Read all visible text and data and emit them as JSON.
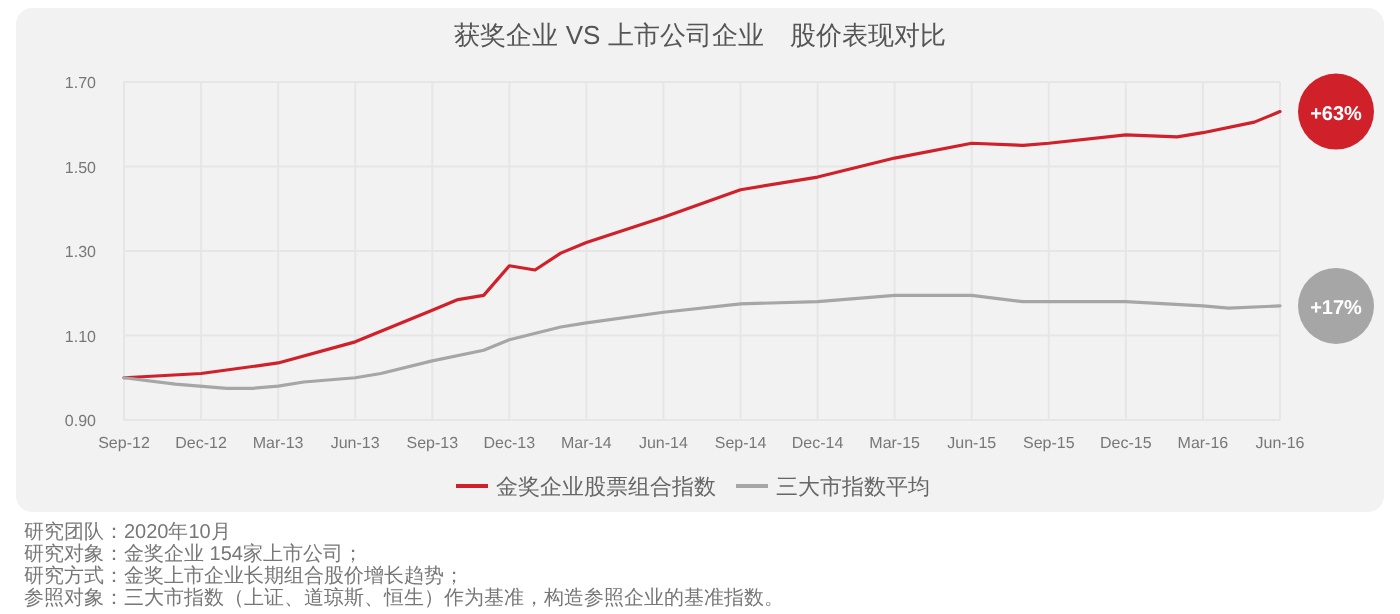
{
  "chart_data": {
    "type": "line",
    "title": "获奖企业 VS 上市公司企业　股价表现对比",
    "xlim": [
      "2012-09",
      "2016-06"
    ],
    "xticks": [
      {
        "value": "2012-09",
        "label": "Sep-12"
      },
      {
        "value": "2012-12",
        "label": "Dec-12"
      },
      {
        "value": "2013-03",
        "label": "Mar-13"
      },
      {
        "value": "2013-06",
        "label": "Jun-13"
      },
      {
        "value": "2013-09",
        "label": "Sep-13"
      },
      {
        "value": "2013-12",
        "label": "Dec-13"
      },
      {
        "value": "2014-03",
        "label": "Mar-14"
      },
      {
        "value": "2014-06",
        "label": "Jun-14"
      },
      {
        "value": "2014-09",
        "label": "Sep-14"
      },
      {
        "value": "2014-12",
        "label": "Dec-14"
      },
      {
        "value": "2015-03",
        "label": "Mar-15"
      },
      {
        "value": "2015-06",
        "label": "Jun-15"
      },
      {
        "value": "2015-09",
        "label": "Sep-15"
      },
      {
        "value": "2015-12",
        "label": "Dec-15"
      },
      {
        "value": "2016-03",
        "label": "Mar-16"
      },
      {
        "value": "2016-06",
        "label": "Jun-16"
      }
    ],
    "ylim": [
      0.9,
      1.7
    ],
    "yticks": [
      {
        "value": 0.9,
        "label": "0.90"
      },
      {
        "value": 1.1,
        "label": "1.10"
      },
      {
        "value": 1.3,
        "label": "1.30"
      },
      {
        "value": 1.5,
        "label": "1.50"
      },
      {
        "value": 1.7,
        "label": "1.70"
      }
    ],
    "grid": true,
    "legend": "bottom",
    "series": [
      {
        "name": "金奖企业股票组合指数",
        "color": "#d0202a",
        "x": [
          "2012-09",
          "2012-12",
          "2013-03",
          "2013-06",
          "2013-09",
          "2013-10",
          "2013-11",
          "2013-12",
          "2014-01",
          "2014-02",
          "2014-03",
          "2014-06",
          "2014-09",
          "2014-12",
          "2015-03",
          "2015-06",
          "2015-08",
          "2015-09",
          "2015-12",
          "2016-02",
          "2016-03",
          "2016-05",
          "2016-06"
        ],
        "values": [
          1.0,
          1.01,
          1.035,
          1.085,
          1.16,
          1.185,
          1.195,
          1.265,
          1.255,
          1.295,
          1.32,
          1.38,
          1.445,
          1.475,
          1.52,
          1.555,
          1.55,
          1.555,
          1.575,
          1.57,
          1.58,
          1.605,
          1.63
        ]
      },
      {
        "name": "三大市指数平均",
        "color": "#a6a6a6",
        "x": [
          "2012-09",
          "2012-11",
          "2013-01",
          "2013-02",
          "2013-03",
          "2013-04",
          "2013-06",
          "2013-07",
          "2013-09",
          "2013-11",
          "2013-12",
          "2014-02",
          "2014-03",
          "2014-06",
          "2014-09",
          "2014-12",
          "2015-03",
          "2015-06",
          "2015-08",
          "2015-09",
          "2015-12",
          "2016-03",
          "2016-04",
          "2016-06"
        ],
        "values": [
          1.0,
          0.985,
          0.975,
          0.975,
          0.98,
          0.99,
          1.0,
          1.01,
          1.04,
          1.065,
          1.09,
          1.12,
          1.13,
          1.155,
          1.175,
          1.18,
          1.195,
          1.195,
          1.18,
          1.18,
          1.18,
          1.17,
          1.165,
          1.17
        ]
      }
    ],
    "annotations": [
      {
        "text": "+63%",
        "x": "2016-06",
        "y": 1.63
      },
      {
        "text": "+17%",
        "x": "2016-06",
        "y": 1.17
      },
      "研究团队：2020年10月",
      "研究对象：金奖企业 154家上市公司；",
      "研究方式：金奖上市企业长期组合股价增长趋势；",
      "参照对象：三大市指数（上证、道琼斯、恒生）作为基准，构造参照企业的基准指数。"
    ]
  }
}
